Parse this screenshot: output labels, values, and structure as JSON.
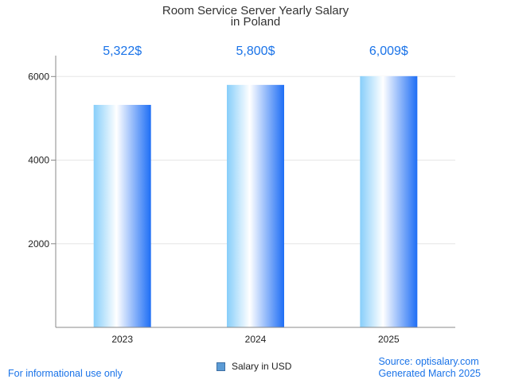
{
  "chart_data": {
    "type": "bar",
    "title": "Room Service Server Yearly Salary",
    "subtitle": "in Poland",
    "categories": [
      "2023",
      "2024",
      "2025"
    ],
    "series": [
      {
        "name": "Salary in USD",
        "values": [
          5322,
          5800,
          6009
        ]
      }
    ],
    "data_labels": [
      "5,322$",
      "5,800$",
      "6,009$"
    ],
    "y_ticks": [
      2000,
      4000,
      6000
    ],
    "ylim": [
      0,
      6500
    ],
    "grid": true,
    "legend_position": "bottom-center",
    "colors": {
      "bar_light": "#87cefa",
      "bar_mid": "#ffffff",
      "bar_dark": "#1e6ef5",
      "data_label": "#1a73e8",
      "grid": "#e6e6e6",
      "axis": "#888888"
    }
  },
  "footer": {
    "disclaimer": "For informational use only",
    "source": "Source: optisalary.com",
    "generated": "Generated March 2025"
  }
}
